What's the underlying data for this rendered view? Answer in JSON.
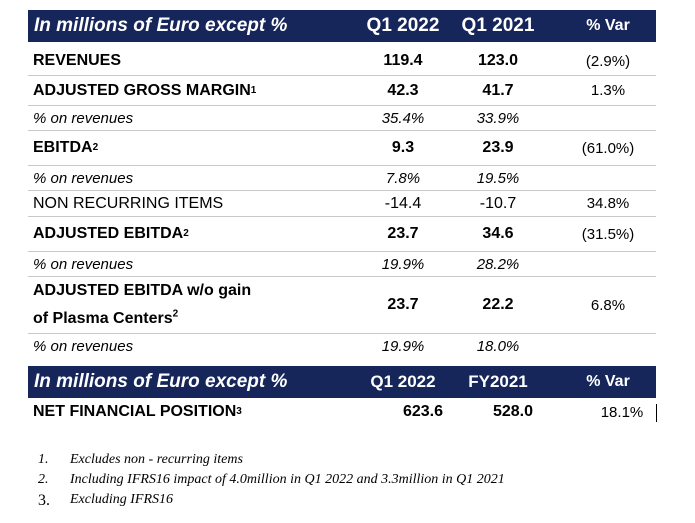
{
  "header1": {
    "title": "In millions of Euro except %",
    "col1": "Q1 2022",
    "col2": "Q1 2021",
    "col3": "% Var"
  },
  "rows": [
    {
      "label": "REVENUES",
      "sup": "",
      "v1": "119.4",
      "v2": "123.0",
      "v3": "(2.9%)"
    },
    {
      "label": "ADJUSTED GROSS MARGIN",
      "sup": "1",
      "v1": "42.3",
      "v2": "41.7",
      "v3": "1.3%"
    },
    {
      "label": "% on revenues",
      "sup": "",
      "v1": "35.4%",
      "v2": "33.9%",
      "v3": ""
    },
    {
      "label": "EBITDA",
      "sup": "2",
      "v1": "9.3",
      "v2": "23.9",
      "v3": "(61.0%)"
    },
    {
      "label": "% on revenues",
      "sup": "",
      "v1": "7.8%",
      "v2": "19.5%",
      "v3": ""
    },
    {
      "label": "NON RECURRING ITEMS",
      "sup": "",
      "v1": "-14.4",
      "v2": "-10.7",
      "v3": "34.8%"
    },
    {
      "label": "ADJUSTED EBITDA",
      "sup": "2",
      "v1": "23.7",
      "v2": "34.6",
      "v3": "(31.5%)"
    },
    {
      "label": "% on revenues",
      "sup": "",
      "v1": "19.9%",
      "v2": "28.2%",
      "v3": ""
    },
    {
      "label": "ADJUSTED EBITDA w/o gain",
      "label2": "of Plasma Centers",
      "sup": "2",
      "v1": "23.7",
      "v2": "22.2",
      "v3": "6.8%"
    },
    {
      "label": "% on revenues",
      "sup": "",
      "v1": "19.9%",
      "v2": "18.0%",
      "v3": ""
    }
  ],
  "header2": {
    "title": "In millions of Euro except %",
    "col1": "Q1 2022",
    "col2": "FY2021",
    "col3": "% Var"
  },
  "nfp": {
    "label": "NET FINANCIAL POSITION",
    "sup": "3",
    "v1": "623.6",
    "v2": "528.0",
    "v3": "18.1%"
  },
  "notes": [
    {
      "num": "1.",
      "text": "Excludes non - recurring items"
    },
    {
      "num": "2.",
      "text": "Including IFRS16 impact of 4.0million in Q1 2022 and 3.3million in Q1 2021"
    },
    {
      "num": "3.",
      "text": "Excluding IFRS16"
    }
  ]
}
